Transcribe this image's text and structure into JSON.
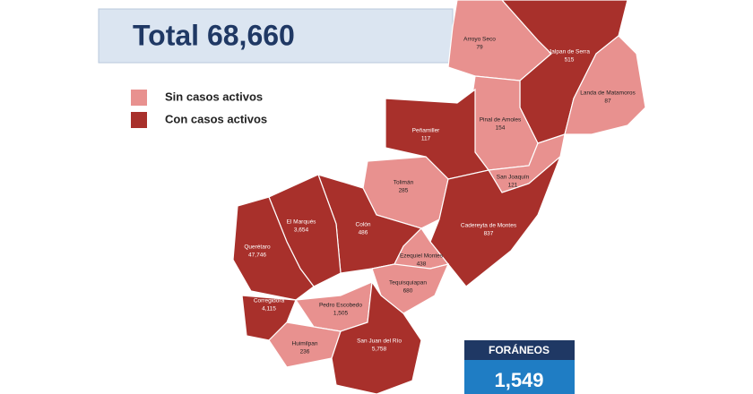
{
  "header": {
    "title": "Total 68,660"
  },
  "legend": [
    {
      "label": "Sin casos activos",
      "color": "#e8918f"
    },
    {
      "label": "Con casos activos",
      "color": "#a8302b"
    }
  ],
  "municipalities": [
    {
      "name": "Arroyo Seco",
      "cases": "79",
      "color": "#e8918f"
    },
    {
      "name": "Jalpan de Serra",
      "cases": "515",
      "color": "#a8302b"
    },
    {
      "name": "Landa de Matamoros",
      "cases": "87",
      "color": "#e8918f"
    },
    {
      "name": "Pinal de Amoles",
      "cases": "154",
      "color": "#e8918f"
    },
    {
      "name": "Peñamiller",
      "cases": "117",
      "color": "#a8302b"
    },
    {
      "name": "Tolimán",
      "cases": "285",
      "color": "#e8918f"
    },
    {
      "name": "San Joaquín",
      "cases": "121",
      "color": "#e8918f"
    },
    {
      "name": "Cadereyta de Montes",
      "cases": "837",
      "color": "#a8302b"
    },
    {
      "name": "Colón",
      "cases": "486",
      "color": "#a8302b"
    },
    {
      "name": "El Marqués",
      "cases": "3,654",
      "color": "#a8302b"
    },
    {
      "name": "Querétaro",
      "cases": "47,746",
      "color": "#a8302b"
    },
    {
      "name": "Ezequiel Montes",
      "cases": "438",
      "color": "#e8918f"
    },
    {
      "name": "Tequisquiapan",
      "cases": "680",
      "color": "#e8918f"
    },
    {
      "name": "Corregidora",
      "cases": "4,115",
      "color": "#a8302b"
    },
    {
      "name": "Pedro Escobedo",
      "cases": "1,505",
      "color": "#e8918f"
    },
    {
      "name": "Huimilpan",
      "cases": "236",
      "color": "#e8918f"
    },
    {
      "name": "San Juan del Río",
      "cases": "5,758",
      "color": "#a8302b"
    }
  ],
  "foraneos": {
    "label": "FORÁNEOS",
    "value": "1,549"
  }
}
